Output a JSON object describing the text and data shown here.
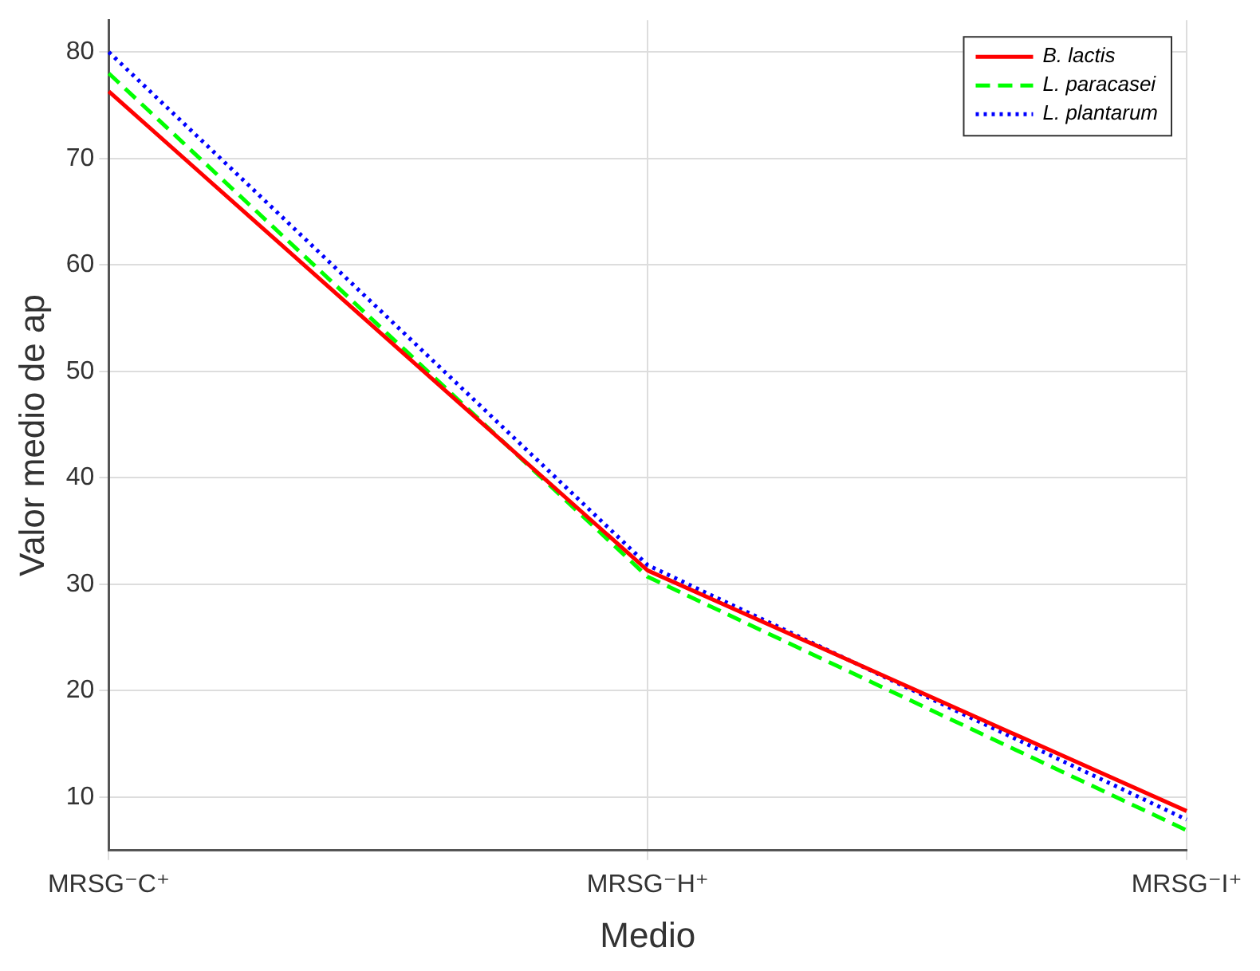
{
  "chart_data": {
    "type": "line",
    "xlabel": "Medio",
    "ylabel": "Valor medio de ap",
    "categories": [
      "MRSG⁻C⁺",
      "MRSG⁻H⁺",
      "MRSG⁻I⁺"
    ],
    "series": [
      {
        "name": "B. lactis",
        "color": "#ff0000",
        "line_style": "solid",
        "values": [
          76.3,
          31.3,
          8.7
        ]
      },
      {
        "name": "L. paracasei",
        "color": "#00ff00",
        "line_style": "dashed",
        "values": [
          78,
          30.7,
          6.9
        ]
      },
      {
        "name": "L. plantarum",
        "color": "#0000ff",
        "line_style": "dotted",
        "values": [
          80,
          31.8,
          7.9
        ]
      }
    ],
    "ylim": [
      5,
      83
    ],
    "yticks": [
      10,
      20,
      30,
      40,
      50,
      60,
      70,
      80
    ],
    "grid": true,
    "legend": "top right",
    "marker": "none"
  }
}
